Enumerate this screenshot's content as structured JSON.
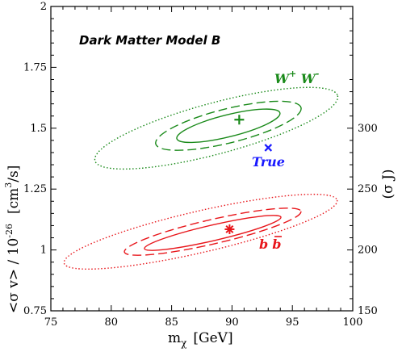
{
  "chart_data": {
    "type": "scatter",
    "title": "Dark Matter Model B",
    "xlabel": {
      "main": "m",
      "sub": "χ",
      "unit": "[GeV]"
    },
    "ylabel": {
      "main": "<σ v> / 10",
      "sup": "-26",
      "unit_pre": "[cm",
      "unit_sup": "3",
      "unit_post": "/s]"
    },
    "ylabel_right": "(σ J)",
    "xlim": [
      75,
      100
    ],
    "ylim": [
      0.75,
      2.0
    ],
    "xticks": [
      75,
      80,
      85,
      90,
      95,
      100
    ],
    "yticks": [
      0.75,
      1.0,
      1.25,
      1.5,
      1.75,
      2.0
    ],
    "ytick_labels": [
      "0.75",
      "1",
      "1.25",
      "1.5",
      "1.75",
      "2"
    ],
    "yticks_right": [
      150,
      200,
      250,
      300
    ],
    "right_axis_per_left_unit": 200,
    "series": [
      {
        "name": "W⁺ W⁻",
        "label_main": "W",
        "label_sup1": "+",
        "label_mid": " W",
        "label_sup2": "-",
        "color": "#1a8a1a",
        "best_fit": {
          "x": 90.6,
          "y": 1.535
        },
        "marker": "plus",
        "contours": [
          {
            "style": "solid",
            "cx": 89.7,
            "cy": 1.51,
            "a": 4.4,
            "b": 0.045,
            "angle_deg": 14
          },
          {
            "style": "dashed",
            "cx": 89.7,
            "cy": 1.51,
            "a": 6.2,
            "b": 0.07,
            "angle_deg": 14
          },
          {
            "style": "dotted",
            "cx": 88.7,
            "cy": 1.5,
            "a": 10.4,
            "b": 0.105,
            "angle_deg": 15
          }
        ]
      },
      {
        "name": "b b̄",
        "label_main": "b",
        "label_bar": "b",
        "color": "#e8161b",
        "best_fit": {
          "x": 89.8,
          "y": 1.085
        },
        "marker": "asterisk",
        "contours": [
          {
            "style": "solid",
            "cx": 88.4,
            "cy": 1.07,
            "a": 5.8,
            "b": 0.032,
            "angle_deg": 13
          },
          {
            "style": "dashed",
            "cx": 88.4,
            "cy": 1.075,
            "a": 7.5,
            "b": 0.05,
            "angle_deg": 13
          },
          {
            "style": "dotted",
            "cx": 87.4,
            "cy": 1.075,
            "a": 11.6,
            "b": 0.085,
            "angle_deg": 13
          }
        ]
      }
    ],
    "true_point": {
      "label": "True",
      "x": 93.0,
      "y": 1.42,
      "marker": "cross",
      "color": "#1a1aff"
    }
  }
}
